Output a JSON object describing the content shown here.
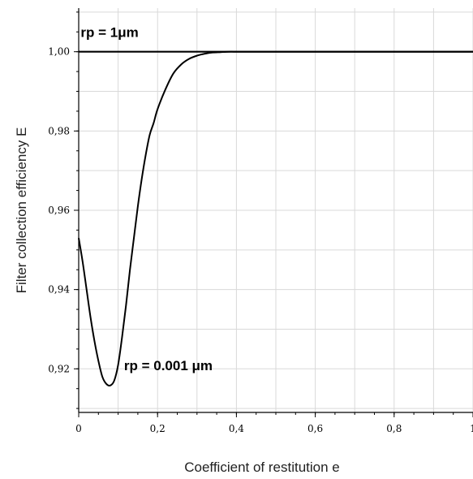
{
  "chart_data": {
    "type": "line",
    "title": "",
    "xlabel": "Coefficient of restitution  e",
    "ylabel": "Filter collection efficiency  E",
    "xlim": [
      0,
      1
    ],
    "ylim": [
      0.909,
      1.011
    ],
    "x_ticks": [
      {
        "value": 0,
        "label": "0"
      },
      {
        "value": 0.2,
        "label": "0,2"
      },
      {
        "value": 0.4,
        "label": "0,4"
      },
      {
        "value": 0.6,
        "label": "0,6"
      },
      {
        "value": 0.8,
        "label": "0,8"
      },
      {
        "value": 1,
        "label": "1"
      }
    ],
    "y_ticks": [
      {
        "value": 0.92,
        "label": "0,92"
      },
      {
        "value": 0.94,
        "label": "0,94"
      },
      {
        "value": 0.96,
        "label": "0,96"
      },
      {
        "value": 0.98,
        "label": "0,98"
      },
      {
        "value": 1.0,
        "label": "1,00"
      }
    ],
    "grid": true,
    "series": [
      {
        "name": "rp = 1μm",
        "color": "#000000",
        "x": [
          0,
          0.1,
          0.2,
          0.3,
          0.4,
          0.5,
          0.6,
          0.7,
          0.8,
          0.9,
          1.0
        ],
        "y": [
          1.0,
          1.0,
          1.0,
          1.0,
          1.0,
          1.0,
          1.0,
          1.0,
          1.0,
          1.0,
          1.0
        ]
      },
      {
        "name": "rp = 0.001 μm",
        "color": "#000000",
        "x": [
          0,
          0.01,
          0.02,
          0.03,
          0.04,
          0.05,
          0.06,
          0.07,
          0.08,
          0.09,
          0.1,
          0.11,
          0.12,
          0.13,
          0.14,
          0.15,
          0.16,
          0.17,
          0.18,
          0.19,
          0.2,
          0.22,
          0.24,
          0.26,
          0.28,
          0.3,
          0.32,
          0.34,
          0.36,
          0.38,
          0.4,
          0.42,
          0.45,
          0.5,
          0.6,
          0.7,
          0.8,
          0.9,
          1.0
        ],
        "y": [
          0.953,
          0.947,
          0.94,
          0.933,
          0.927,
          0.922,
          0.918,
          0.9162,
          0.9158,
          0.917,
          0.921,
          0.928,
          0.936,
          0.945,
          0.953,
          0.961,
          0.968,
          0.974,
          0.979,
          0.982,
          0.9855,
          0.9905,
          0.9945,
          0.9968,
          0.9982,
          0.999,
          0.9995,
          0.9998,
          0.9999,
          1.0,
          1.0,
          1.0,
          1.0,
          1.0,
          1.0,
          1.0,
          1.0,
          1.0,
          1.0
        ]
      }
    ],
    "annotations": [
      {
        "text": "rp = 1μm",
        "x": 0.005,
        "y": 1.0037
      },
      {
        "text": "rp = 0.001 μm",
        "x": 0.115,
        "y": 0.9196
      }
    ]
  }
}
